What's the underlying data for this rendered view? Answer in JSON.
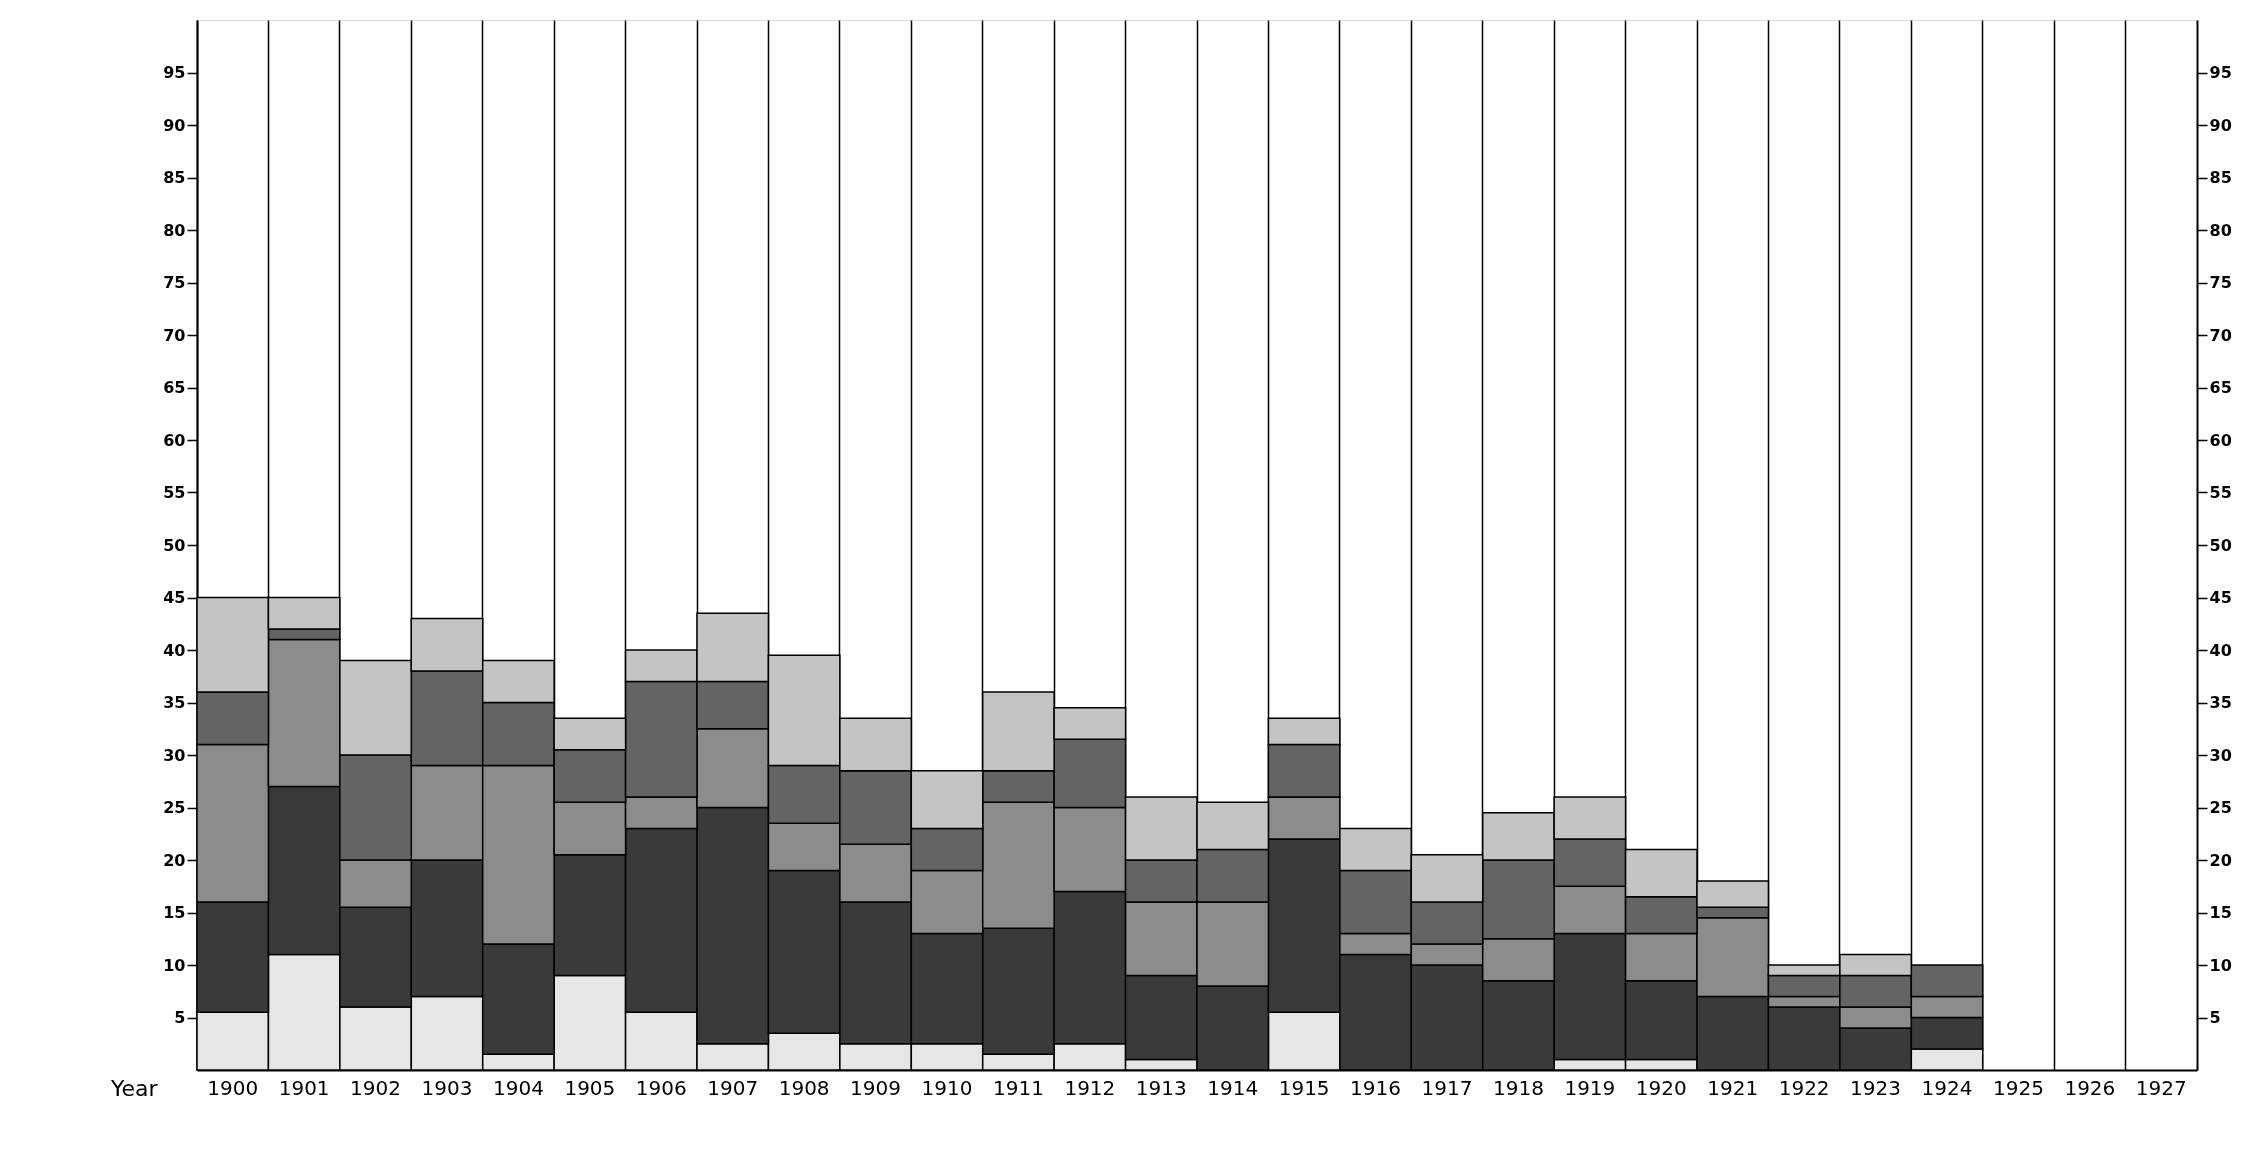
{
  "chart_data": {
    "type": "bar",
    "stacked": true,
    "xlabel": "Year",
    "categories": [
      "1900",
      "1901",
      "1902",
      "1903",
      "1904",
      "1905",
      "1906",
      "1907",
      "1908",
      "1909",
      "1910",
      "1911",
      "1912",
      "1913",
      "1914",
      "1915",
      "1916",
      "1917",
      "1918",
      "1919",
      "1920",
      "1921",
      "1922",
      "1923",
      "1924",
      "1925",
      "1926",
      "1927"
    ],
    "series": [
      {
        "color": "#e6e6e6",
        "values": [
          5.5,
          11,
          6,
          7,
          1.5,
          9,
          5.5,
          2.5,
          3.5,
          2.5,
          2.5,
          1.5,
          2.5,
          1,
          null,
          5.5,
          null,
          null,
          null,
          1,
          1,
          null,
          null,
          null,
          2,
          null,
          null,
          null
        ]
      },
      {
        "color": "#3a3a3a",
        "values": [
          10.5,
          16,
          9.5,
          13,
          10.5,
          11.5,
          17.5,
          22.5,
          15.5,
          13.5,
          10.5,
          12,
          14.5,
          8,
          8,
          16.5,
          11,
          10,
          8.5,
          12,
          7.5,
          7,
          6,
          4,
          3,
          null,
          null,
          null
        ]
      },
      {
        "color": "#8c8c8c",
        "values": [
          15,
          14,
          4.5,
          9,
          17,
          5,
          3,
          7.5,
          4.5,
          5.5,
          6,
          12,
          8,
          7,
          8,
          4,
          2,
          2,
          4,
          4.5,
          4.5,
          7.5,
          1,
          2,
          2,
          null,
          null,
          null
        ]
      },
      {
        "color": "#646464",
        "values": [
          5,
          1,
          10,
          9,
          6,
          5,
          11,
          4.5,
          5.5,
          7,
          4,
          3,
          6.5,
          4,
          5,
          5,
          6,
          4,
          7.5,
          4.5,
          3.5,
          1,
          2,
          3,
          3,
          null,
          null,
          null
        ]
      },
      {
        "color": "#c4c4c4",
        "values": [
          9,
          3,
          9,
          5,
          4,
          3,
          3,
          6.5,
          10.5,
          5,
          5.5,
          7.5,
          3,
          6,
          4.5,
          2.5,
          4,
          4.5,
          4.5,
          4,
          4.5,
          2.5,
          1,
          2,
          null,
          null,
          null,
          null
        ]
      }
    ],
    "ylim": [
      0,
      100
    ],
    "yticks": [
      5,
      10,
      15,
      20,
      25,
      30,
      35,
      40,
      45,
      50,
      55,
      60,
      65,
      70,
      75,
      80,
      85,
      90,
      95
    ],
    "y2lim": [
      0,
      100
    ],
    "y2ticks": [
      5,
      10,
      15,
      20,
      25,
      30,
      35,
      40,
      45,
      50,
      55,
      60,
      65,
      70,
      75,
      80,
      85,
      90,
      95
    ],
    "grid": "x"
  }
}
